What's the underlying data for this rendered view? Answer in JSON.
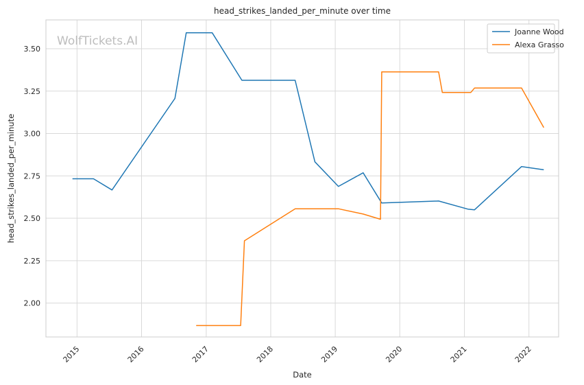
{
  "chart_data": {
    "type": "line",
    "title": "head_strikes_landed_per_minute over time",
    "xlabel": "Date",
    "ylabel": "head_strikes_landed_per_minute",
    "watermark": "WolfTickets.AI",
    "x_axis": {
      "kind": "date",
      "range": [
        "2014-07-09",
        "2022-06-18"
      ],
      "ticks": [
        {
          "date": "2015-01-01",
          "label": "2015"
        },
        {
          "date": "2016-01-01",
          "label": "2016"
        },
        {
          "date": "2017-01-01",
          "label": "2017"
        },
        {
          "date": "2018-01-01",
          "label": "2018"
        },
        {
          "date": "2019-01-01",
          "label": "2019"
        },
        {
          "date": "2020-01-01",
          "label": "2020"
        },
        {
          "date": "2021-01-01",
          "label": "2021"
        },
        {
          "date": "2022-01-01",
          "label": "2022"
        }
      ]
    },
    "y_axis": {
      "range": [
        1.8,
        3.67
      ],
      "ticks": [
        {
          "value": 2.0,
          "label": "2.00"
        },
        {
          "value": 2.25,
          "label": "2.25"
        },
        {
          "value": 2.5,
          "label": "2.50"
        },
        {
          "value": 2.75,
          "label": "2.75"
        },
        {
          "value": 3.0,
          "label": "3.00"
        },
        {
          "value": 3.25,
          "label": "3.25"
        },
        {
          "value": 3.5,
          "label": "3.50"
        }
      ]
    },
    "grid": true,
    "legend": {
      "position": "top-right"
    },
    "series": [
      {
        "name": "Joanne Wood",
        "color": "#1f77b4",
        "points": [
          {
            "x": "2014-12-06",
            "y": 2.733
          },
          {
            "x": "2015-04-04",
            "y": 2.733
          },
          {
            "x": "2015-07-18",
            "y": 2.667
          },
          {
            "x": "2016-07-08",
            "y": 3.207
          },
          {
            "x": "2016-09-10",
            "y": 3.594
          },
          {
            "x": "2017-02-04",
            "y": 3.594
          },
          {
            "x": "2017-07-22",
            "y": 3.314
          },
          {
            "x": "2018-05-19",
            "y": 3.314
          },
          {
            "x": "2018-09-08",
            "y": 2.833
          },
          {
            "x": "2019-01-19",
            "y": 2.688
          },
          {
            "x": "2019-06-08",
            "y": 2.768
          },
          {
            "x": "2019-09-21",
            "y": 2.59
          },
          {
            "x": "2020-08-08",
            "y": 2.602
          },
          {
            "x": "2021-01-20",
            "y": 2.554
          },
          {
            "x": "2021-02-27",
            "y": 2.55
          },
          {
            "x": "2021-11-20",
            "y": 2.805
          },
          {
            "x": "2022-03-26",
            "y": 2.786
          }
        ]
      },
      {
        "name": "Alexa Grasso",
        "color": "#ff7f0e",
        "points": [
          {
            "x": "2016-11-05",
            "y": 1.867
          },
          {
            "x": "2017-07-15",
            "y": 1.867
          },
          {
            "x": "2017-08-05",
            "y": 2.367
          },
          {
            "x": "2018-05-19",
            "y": 2.556
          },
          {
            "x": "2019-01-19",
            "y": 2.556
          },
          {
            "x": "2019-06-08",
            "y": 2.525
          },
          {
            "x": "2019-09-14",
            "y": 2.494
          },
          {
            "x": "2019-09-21",
            "y": 3.363
          },
          {
            "x": "2020-08-08",
            "y": 3.363
          },
          {
            "x": "2020-08-29",
            "y": 3.242
          },
          {
            "x": "2021-02-06",
            "y": 3.242
          },
          {
            "x": "2021-02-27",
            "y": 3.268
          },
          {
            "x": "2021-11-20",
            "y": 3.268
          },
          {
            "x": "2022-03-26",
            "y": 3.035
          }
        ]
      }
    ]
  }
}
